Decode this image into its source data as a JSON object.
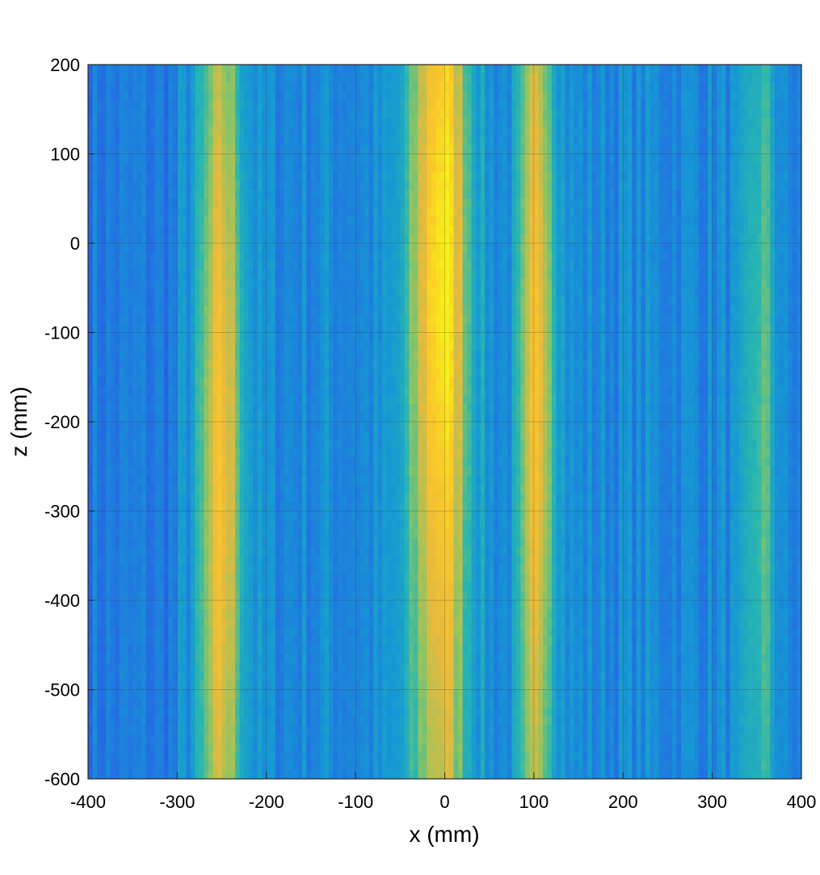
{
  "chart_data": {
    "type": "heatmap",
    "title": "",
    "xlabel": "x (mm)",
    "ylabel": "z (mm)",
    "xlim": [
      -400,
      400
    ],
    "ylim": [
      -600,
      200
    ],
    "grid": true,
    "x_ticks": [
      -400,
      -300,
      -200,
      -100,
      0,
      100,
      200,
      300,
      400
    ],
    "y_ticks": [
      -600,
      -500,
      -400,
      -300,
      -200,
      -100,
      0,
      100,
      200
    ],
    "colormap": "parula",
    "colors": {
      "low": "#2c5fd8",
      "mid_low": "#1c9bd6",
      "mid": "#29b4b3",
      "mid_high": "#96c366",
      "high": "#f1b937",
      "peak": "#f6f21a"
    },
    "description_of_intensity": "Vertical bands of high intensity near x = -250, x = 0 and x = 105 mm; weaker band near x = 350 mm",
    "bands": [
      {
        "x_center": -250,
        "x_width": 55,
        "peak_z": -250,
        "peak_level": 0.82
      },
      {
        "x_center": -5,
        "x_width": 75,
        "peak_z": -40,
        "peak_level": 1.0
      },
      {
        "x_center": 105,
        "x_width": 45,
        "peak_z": -150,
        "peak_level": 0.84
      },
      {
        "x_center": 355,
        "x_width": 35,
        "peak_z": -200,
        "peak_level": 0.55
      }
    ]
  }
}
